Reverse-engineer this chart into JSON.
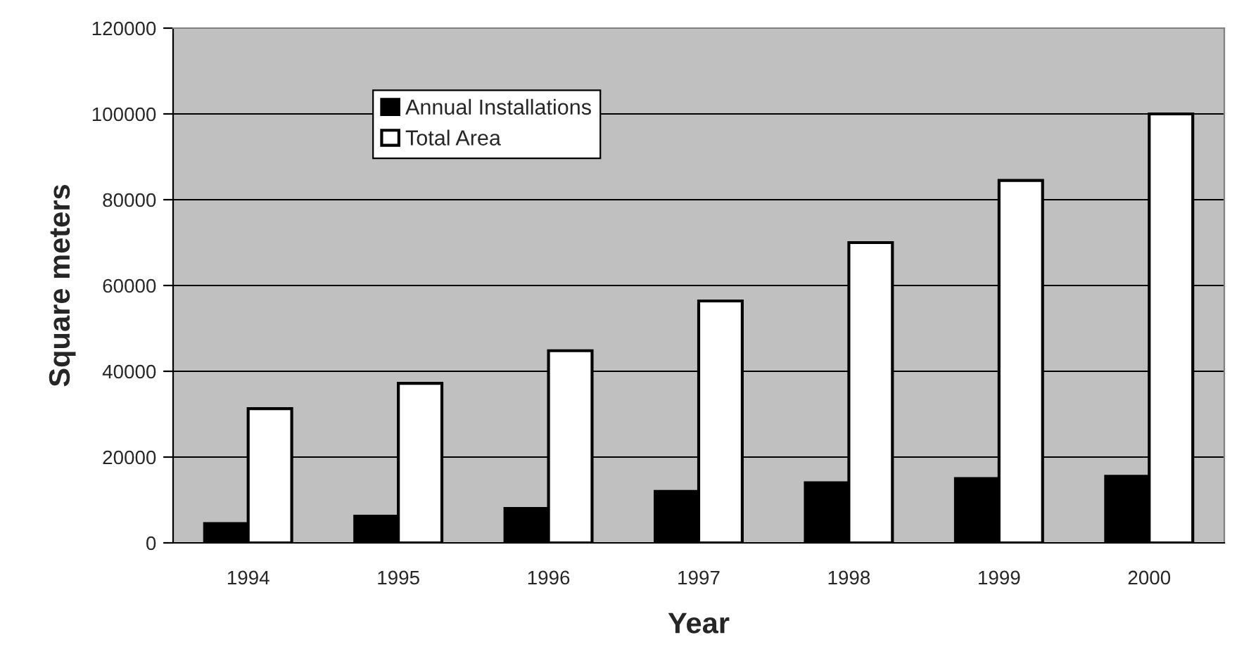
{
  "chart_data": {
    "type": "bar",
    "xlabel": "Year",
    "ylabel": "Square meters",
    "categories": [
      "1994",
      "1995",
      "1996",
      "1997",
      "1998",
      "1999",
      "2000"
    ],
    "series": [
      {
        "name": "Annual Installations",
        "color": "#000000",
        "values": [
          4500,
          6200,
          8000,
          12000,
          14000,
          15000,
          15500
        ]
      },
      {
        "name": "Total Area",
        "color": "#ffffff",
        "values": [
          31300,
          37200,
          44800,
          56400,
          70000,
          84500,
          100000
        ]
      }
    ],
    "ylim": [
      0,
      120000
    ],
    "yticks": [
      0,
      20000,
      40000,
      60000,
      80000,
      100000,
      120000
    ],
    "grid": "y",
    "legend": "top left"
  }
}
